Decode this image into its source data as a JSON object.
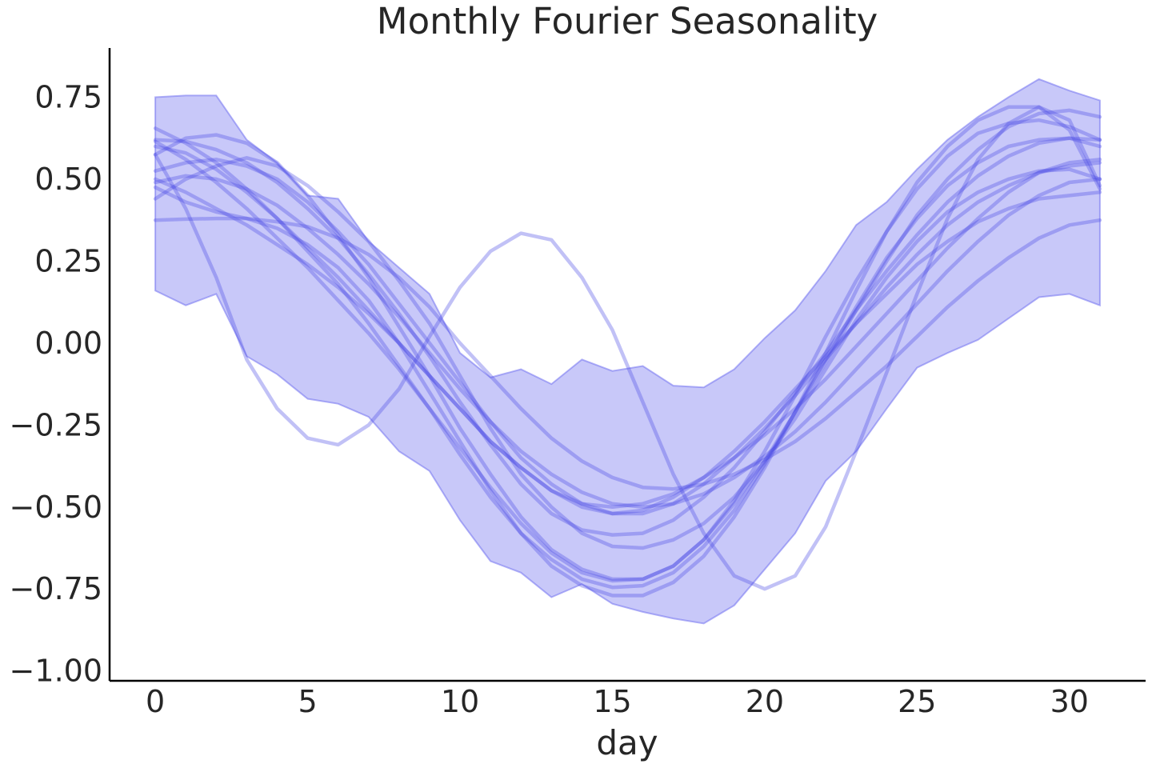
{
  "chart_data": {
    "type": "line",
    "title": "Monthly Fourier Seasonality",
    "xlabel": "day",
    "ylabel": "",
    "xlim": [
      -1.5,
      32.5
    ],
    "ylim": [
      -1.03,
      0.9
    ],
    "xticks": [
      0,
      5,
      10,
      15,
      20,
      25,
      30
    ],
    "xtick_labels": [
      "0",
      "5",
      "10",
      "15",
      "20",
      "25",
      "30"
    ],
    "yticks": [
      -1.0,
      -0.75,
      -0.5,
      -0.25,
      0.0,
      0.25,
      0.5,
      0.75
    ],
    "ytick_labels": [
      "−1.00",
      "−0.75",
      "−0.50",
      "−0.25",
      "0.00",
      "0.25",
      "0.50",
      "0.75"
    ],
    "grid": false,
    "x": [
      0,
      1,
      2,
      3,
      4,
      5,
      6,
      7,
      8,
      9,
      10,
      11,
      12,
      13,
      14,
      15,
      16,
      17,
      18,
      19,
      20,
      21,
      22,
      23,
      24,
      25,
      26,
      27,
      28,
      29,
      30,
      31
    ],
    "band": {
      "color": "#6b6bef",
      "opacity": 0.37,
      "upper": [
        0.75,
        0.755,
        0.755,
        0.62,
        0.55,
        0.45,
        0.44,
        0.31,
        0.23,
        0.15,
        -0.03,
        -0.105,
        -0.08,
        -0.125,
        -0.05,
        -0.085,
        -0.07,
        -0.13,
        -0.135,
        -0.08,
        0.015,
        0.1,
        0.22,
        0.36,
        0.43,
        0.53,
        0.62,
        0.69,
        0.75,
        0.805,
        0.77,
        0.74
      ],
      "lower": [
        0.16,
        0.115,
        0.15,
        -0.04,
        -0.095,
        -0.17,
        -0.185,
        -0.225,
        -0.33,
        -0.39,
        -0.54,
        -0.665,
        -0.7,
        -0.775,
        -0.735,
        -0.795,
        -0.82,
        -0.84,
        -0.855,
        -0.8,
        -0.69,
        -0.58,
        -0.42,
        -0.33,
        -0.2,
        -0.075,
        -0.03,
        0.01,
        0.075,
        0.14,
        0.15,
        0.115
      ]
    },
    "series_style": {
      "color": "#4a4ae6",
      "opacity": 0.34,
      "width": 4.5
    },
    "series": [
      {
        "values": [
          0.375,
          0.378,
          0.38,
          0.38,
          0.37,
          0.355,
          0.32,
          0.27,
          0.2,
          0.11,
          0.0,
          -0.1,
          -0.2,
          -0.29,
          -0.36,
          -0.41,
          -0.44,
          -0.445,
          -0.43,
          -0.4,
          -0.355,
          -0.3,
          -0.23,
          -0.15,
          -0.07,
          0.02,
          0.11,
          0.19,
          0.26,
          0.32,
          0.36,
          0.375
        ]
      },
      {
        "values": [
          0.44,
          0.5,
          0.54,
          0.565,
          0.54,
          0.48,
          0.4,
          0.31,
          0.19,
          0.06,
          -0.1,
          -0.26,
          -0.4,
          -0.5,
          -0.58,
          -0.62,
          -0.625,
          -0.6,
          -0.55,
          -0.47,
          -0.36,
          -0.23,
          -0.08,
          0.07,
          0.2,
          0.31,
          0.4,
          0.46,
          0.5,
          0.525,
          0.53,
          0.5
        ]
      },
      {
        "values": [
          0.49,
          0.51,
          0.5,
          0.47,
          0.42,
          0.35,
          0.27,
          0.18,
          0.08,
          -0.03,
          -0.14,
          -0.24,
          -0.33,
          -0.4,
          -0.455,
          -0.49,
          -0.5,
          -0.49,
          -0.46,
          -0.41,
          -0.345,
          -0.27,
          -0.18,
          -0.08,
          0.02,
          0.12,
          0.22,
          0.31,
          0.39,
          0.45,
          0.49,
          0.5
        ]
      },
      {
        "values": [
          0.5,
          0.46,
          0.41,
          0.36,
          0.3,
          0.24,
          0.17,
          0.09,
          0.0,
          -0.1,
          -0.2,
          -0.3,
          -0.38,
          -0.45,
          -0.49,
          -0.5,
          -0.49,
          -0.46,
          -0.41,
          -0.35,
          -0.28,
          -0.2,
          -0.11,
          -0.01,
          0.09,
          0.19,
          0.29,
          0.38,
          0.46,
          0.52,
          0.55,
          0.56
        ]
      },
      {
        "values": [
          0.655,
          0.61,
          0.55,
          0.47,
          0.38,
          0.28,
          0.18,
          0.06,
          -0.07,
          -0.2,
          -0.34,
          -0.47,
          -0.58,
          -0.66,
          -0.72,
          -0.745,
          -0.74,
          -0.7,
          -0.62,
          -0.51,
          -0.37,
          -0.21,
          -0.05,
          0.11,
          0.26,
          0.38,
          0.48,
          0.55,
          0.6,
          0.62,
          0.625,
          0.6
        ]
      },
      {
        "values": [
          0.62,
          0.615,
          0.59,
          0.55,
          0.49,
          0.41,
          0.32,
          0.21,
          0.09,
          -0.04,
          -0.18,
          -0.31,
          -0.43,
          -0.52,
          -0.57,
          -0.585,
          -0.58,
          -0.54,
          -0.47,
          -0.38,
          -0.27,
          -0.15,
          -0.03,
          0.1,
          0.22,
          0.33,
          0.43,
          0.51,
          0.57,
          0.61,
          0.625,
          0.62
        ]
      },
      {
        "values": [
          0.575,
          0.625,
          0.635,
          0.61,
          0.55,
          0.45,
          0.33,
          0.2,
          0.05,
          -0.1,
          -0.26,
          -0.4,
          -0.53,
          -0.63,
          -0.69,
          -0.72,
          -0.72,
          -0.68,
          -0.6,
          -0.48,
          -0.33,
          -0.16,
          0.02,
          0.19,
          0.34,
          0.47,
          0.57,
          0.64,
          0.67,
          0.68,
          0.66,
          0.62
        ]
      },
      {
        "values": [
          0.6,
          0.58,
          0.53,
          0.46,
          0.38,
          0.29,
          0.2,
          0.1,
          0.0,
          -0.1,
          -0.2,
          -0.3,
          -0.38,
          -0.45,
          -0.5,
          -0.52,
          -0.51,
          -0.47,
          -0.41,
          -0.33,
          -0.24,
          -0.14,
          -0.04,
          0.06,
          0.15,
          0.24,
          0.31,
          0.37,
          0.41,
          0.44,
          0.45,
          0.46
        ]
      },
      {
        "values": [
          0.525,
          0.55,
          0.56,
          0.54,
          0.5,
          0.43,
          0.34,
          0.24,
          0.12,
          0.0,
          -0.12,
          -0.24,
          -0.35,
          -0.43,
          -0.49,
          -0.52,
          -0.52,
          -0.49,
          -0.43,
          -0.35,
          -0.26,
          -0.16,
          -0.05,
          0.06,
          0.17,
          0.27,
          0.36,
          0.43,
          0.48,
          0.52,
          0.54,
          0.55
        ]
      },
      {
        "values": [
          0.575,
          0.41,
          0.2,
          -0.05,
          -0.2,
          -0.29,
          -0.31,
          -0.25,
          -0.14,
          0.02,
          0.17,
          0.28,
          0.335,
          0.315,
          0.2,
          0.04,
          -0.18,
          -0.4,
          -0.58,
          -0.71,
          -0.75,
          -0.71,
          -0.56,
          -0.33,
          -0.09,
          0.15,
          0.38,
          0.56,
          0.67,
          0.72,
          0.68,
          0.48
        ]
      },
      {
        "values": [
          0.615,
          0.56,
          0.49,
          0.41,
          0.32,
          0.23,
          0.13,
          0.03,
          -0.08,
          -0.2,
          -0.32,
          -0.44,
          -0.55,
          -0.64,
          -0.7,
          -0.725,
          -0.72,
          -0.68,
          -0.6,
          -0.49,
          -0.36,
          -0.21,
          -0.06,
          0.1,
          0.25,
          0.39,
          0.5,
          0.59,
          0.66,
          0.7,
          0.71,
          0.69
        ]
      },
      {
        "values": [
          0.475,
          0.43,
          0.4,
          0.38,
          0.35,
          0.3,
          0.23,
          0.13,
          0.0,
          -0.15,
          -0.3,
          -0.45,
          -0.58,
          -0.68,
          -0.74,
          -0.77,
          -0.77,
          -0.73,
          -0.65,
          -0.53,
          -0.38,
          -0.21,
          -0.03,
          0.16,
          0.34,
          0.49,
          0.6,
          0.68,
          0.72,
          0.72,
          0.65,
          0.47
        ]
      }
    ]
  }
}
